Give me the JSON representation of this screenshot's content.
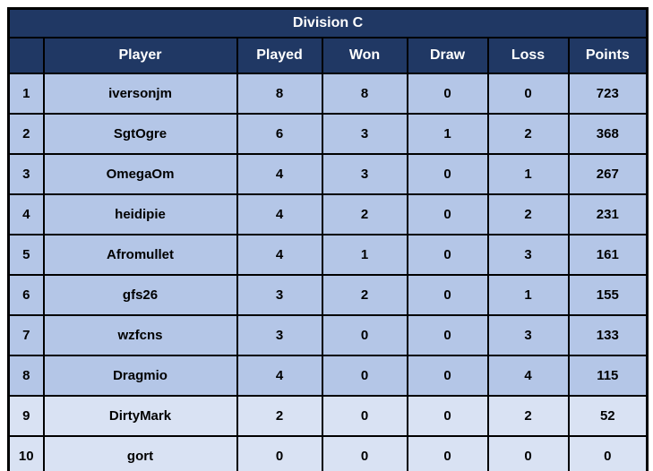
{
  "colors": {
    "header_bg": "#203864",
    "header_text": "#ffffff",
    "row_bg": "#b4c6e7",
    "row_light_bg": "#d9e2f3",
    "border": "#000000",
    "row_text": "#000000",
    "page_bg": "#ffffff"
  },
  "table": {
    "title": "Division C",
    "columns": [
      "",
      "Player",
      "Played",
      "Won",
      "Draw",
      "Loss",
      "Points"
    ],
    "rows": [
      {
        "rank": "1",
        "player": "iversonjm",
        "played": "8",
        "won": "8",
        "draw": "0",
        "loss": "0",
        "points": "723",
        "shade": "normal"
      },
      {
        "rank": "2",
        "player": "SgtOgre",
        "played": "6",
        "won": "3",
        "draw": "1",
        "loss": "2",
        "points": "368",
        "shade": "normal"
      },
      {
        "rank": "3",
        "player": "OmegaOm",
        "played": "4",
        "won": "3",
        "draw": "0",
        "loss": "1",
        "points": "267",
        "shade": "normal"
      },
      {
        "rank": "4",
        "player": "heidipie",
        "played": "4",
        "won": "2",
        "draw": "0",
        "loss": "2",
        "points": "231",
        "shade": "normal"
      },
      {
        "rank": "5",
        "player": "Afromullet",
        "played": "4",
        "won": "1",
        "draw": "0",
        "loss": "3",
        "points": "161",
        "shade": "normal"
      },
      {
        "rank": "6",
        "player": "gfs26",
        "played": "3",
        "won": "2",
        "draw": "0",
        "loss": "1",
        "points": "155",
        "shade": "normal"
      },
      {
        "rank": "7",
        "player": "wzfcns",
        "played": "3",
        "won": "0",
        "draw": "0",
        "loss": "3",
        "points": "133",
        "shade": "normal"
      },
      {
        "rank": "8",
        "player": "Dragmio",
        "played": "4",
        "won": "0",
        "draw": "0",
        "loss": "4",
        "points": "115",
        "shade": "normal"
      },
      {
        "rank": "9",
        "player": "DirtyMark",
        "played": "2",
        "won": "0",
        "draw": "0",
        "loss": "2",
        "points": "52",
        "shade": "light"
      },
      {
        "rank": "10",
        "player": "gort",
        "played": "0",
        "won": "0",
        "draw": "0",
        "loss": "0",
        "points": "0",
        "shade": "light"
      }
    ]
  }
}
